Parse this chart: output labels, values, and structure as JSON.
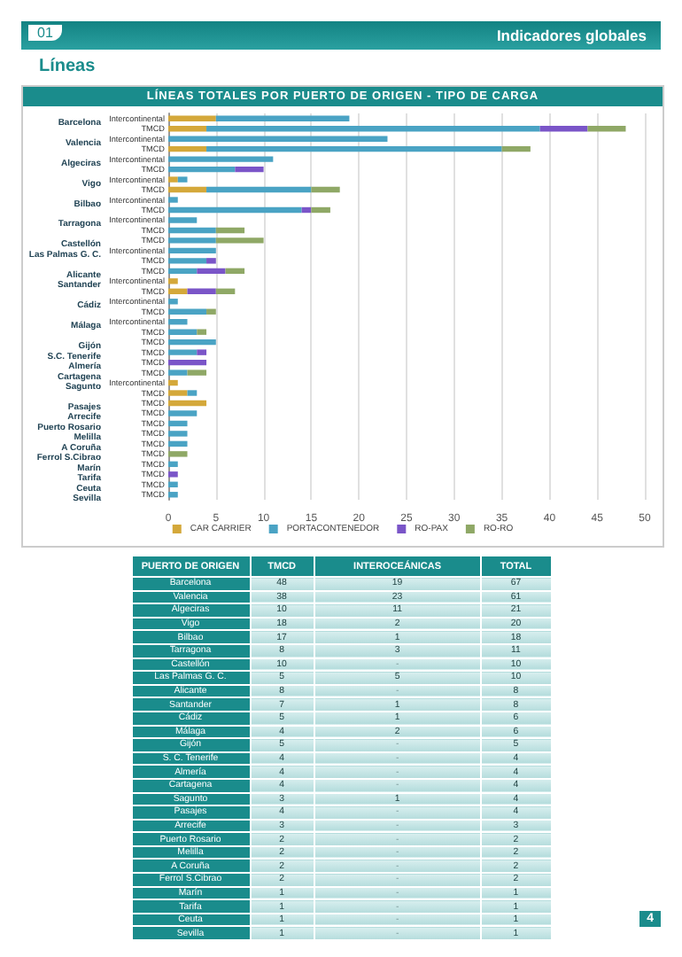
{
  "chart_data": [
    {
      "type": "bar",
      "orientation": "horizontal",
      "stacked": true,
      "title": "LÍNEAS TOTALES POR PUERTO DE ORIGEN - TIPO DE CARGA",
      "annotations": [
        "01",
        "Indicadores globales",
        "Líneas",
        "4"
      ],
      "categories": [
        "Intercontinental",
        "TMCD",
        "Intercontinental",
        "TMCD",
        "Intercontinental",
        "TMCD",
        "Intercontinental",
        "TMCD",
        "Intercontinental",
        "TMCD",
        "Intercontinental",
        "TMCD",
        "TMCD",
        "Intercontinental",
        "TMCD",
        "TMCD",
        "Intercontinental",
        "TMCD",
        "Intercontinental",
        "TMCD",
        "Intercontinental",
        "TMCD",
        "TMCD",
        "TMCD",
        "TMCD",
        "TMCD",
        "Intercontinental",
        "TMCD",
        "TMCD",
        "TMCD",
        "TMCD",
        "TMCD",
        "TMCD",
        "TMCD",
        "TMCD",
        "TMCD",
        "TMCD",
        "TMCD"
      ],
      "y2_categories": [
        "Barcelona",
        null,
        "Valencia",
        null,
        "Algeciras",
        null,
        "Vigo",
        null,
        "Bilbao",
        null,
        "Tarragona",
        null,
        "Castellón",
        "Las Palmas G. C.",
        null,
        "Alicante",
        "Santander",
        null,
        "Cádiz",
        null,
        "Málaga",
        null,
        "Gijón",
        "S.C. Tenerife",
        "Almería",
        "Cartagena",
        "Sagunto",
        null,
        "Pasajes",
        "Arrecife",
        "Puerto Rosario",
        "Melilla",
        "A Coruña",
        "Ferrol S.Cibrao",
        "Marín",
        "Tarifa",
        "Ceuta",
        "Sevilla"
      ],
      "series": [
        {
          "name": "CAR CARRIER",
          "color": "#d4a83a",
          "values": [
            5,
            4,
            null,
            4,
            null,
            null,
            1,
            4,
            null,
            null,
            null,
            null,
            null,
            null,
            null,
            null,
            1,
            2,
            null,
            null,
            null,
            null,
            null,
            null,
            null,
            null,
            1,
            2,
            4,
            null,
            null,
            null,
            null,
            null,
            null,
            null,
            null,
            null
          ]
        },
        {
          "name": "PORTACONTENEDOR",
          "color": "#4aa3c4",
          "values": [
            14,
            35,
            23,
            31,
            11,
            7,
            1,
            11,
            1,
            14,
            3,
            5,
            5,
            5,
            4,
            3,
            null,
            null,
            1,
            4,
            2,
            3,
            5,
            3,
            null,
            2,
            null,
            1,
            null,
            3,
            2,
            2,
            2,
            null,
            1,
            null,
            1,
            1
          ]
        },
        {
          "name": "RO-PAX",
          "color": "#7a55c8",
          "values": [
            null,
            5,
            null,
            null,
            null,
            3,
            null,
            null,
            null,
            1,
            null,
            null,
            null,
            null,
            1,
            3,
            null,
            3,
            null,
            null,
            null,
            null,
            null,
            1,
            4,
            null,
            null,
            null,
            null,
            null,
            null,
            null,
            null,
            null,
            null,
            1,
            null,
            null
          ]
        },
        {
          "name": "RO-RO",
          "color": "#8fa866",
          "values": [
            null,
            4,
            null,
            3,
            null,
            null,
            null,
            3,
            null,
            2,
            null,
            3,
            5,
            null,
            null,
            2,
            null,
            2,
            null,
            1,
            null,
            1,
            null,
            null,
            null,
            2,
            null,
            null,
            null,
            null,
            null,
            null,
            null,
            2,
            null,
            null,
            null,
            null
          ]
        }
      ],
      "xlim": [
        0,
        50
      ],
      "xticks": [
        0,
        5,
        10,
        15,
        20,
        25,
        30,
        35,
        40,
        45,
        50
      ],
      "grid": "x",
      "legend": "bottom"
    },
    {
      "type": "other",
      "ylabel": "PUERTO DE ORIGEN",
      "data_labels": true,
      "categories": [
        "Barcelona",
        "Valencia",
        "Algeciras",
        "Vigo",
        "Bilbao",
        "Tarragona",
        "Castellón",
        "Las Palmas G. C.",
        "Alicante",
        "Santander",
        "Cádiz",
        "Málaga",
        "Gijón",
        "S. C. Tenerife",
        "Almería",
        "Cartagena",
        "Sagunto",
        "Pasajes",
        "Arrecife",
        "Puerto Rosario",
        "Melilla",
        "A Coruña",
        "Ferrol S.Cibrao",
        "Marín",
        "Tarifa",
        "Ceuta",
        "Sevilla"
      ],
      "series": [
        {
          "name": "TMCD",
          "values": [
            48,
            38,
            10,
            18,
            17,
            8,
            10,
            5,
            8,
            7,
            5,
            4,
            5,
            4,
            4,
            4,
            3,
            4,
            3,
            2,
            2,
            2,
            2,
            1,
            1,
            1,
            1
          ]
        },
        {
          "name": "INTEROCEÁNICAS",
          "values": [
            19,
            23,
            11,
            2,
            1,
            3,
            null,
            5,
            null,
            1,
            1,
            2,
            null,
            null,
            null,
            null,
            1,
            null,
            null,
            null,
            null,
            null,
            null,
            null,
            null,
            null,
            null
          ],
          "value_labels": [
            "19",
            "23",
            "11",
            "2",
            "1",
            "3",
            "-",
            "5",
            "-",
            "1",
            "1",
            "2",
            "-",
            "-",
            "-",
            "-",
            "1",
            "-",
            "-",
            "-",
            "-",
            "-",
            "-",
            "-",
            "-",
            "-",
            "-"
          ]
        },
        {
          "name": "TOTAL",
          "values": [
            67,
            61,
            21,
            20,
            18,
            11,
            10,
            10,
            8,
            8,
            6,
            6,
            5,
            4,
            4,
            4,
            4,
            4,
            3,
            2,
            2,
            2,
            2,
            1,
            1,
            1,
            1
          ]
        }
      ]
    }
  ]
}
